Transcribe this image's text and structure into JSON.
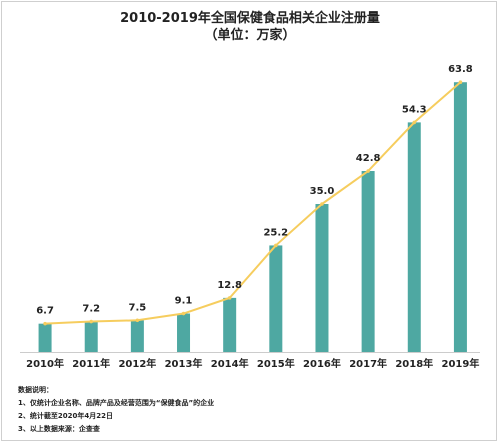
{
  "title": {
    "line1": "2010-2019年全国保健食品相关企业注册量",
    "line2": "（单位：万家）"
  },
  "colors": {
    "bar": "#4ea8a2",
    "line": "#f6cd5e",
    "text": "#222222",
    "axis": "#cccccc"
  },
  "chart_data": {
    "type": "bar",
    "categories": [
      "2010年",
      "2011年",
      "2012年",
      "2013年",
      "2014年",
      "2015年",
      "2016年",
      "2017年",
      "2018年",
      "2019年"
    ],
    "series": [
      {
        "values": [
          6.7,
          7.2,
          7.5,
          9.1,
          12.8,
          25.2,
          35.0,
          42.8,
          54.3,
          63.8
        ]
      }
    ],
    "labels": [
      "6.7",
      "7.2",
      "7.5",
      "9.1",
      "12.8",
      "25.2",
      "35.0",
      "42.8",
      "54.3",
      "63.8"
    ],
    "overlay": "line",
    "title": "2010-2019年全国保健食品相关企业注册量",
    "subtitle": "（单位：万家）",
    "ylim": [
      0,
      70
    ],
    "grid": false,
    "legend": "none"
  },
  "notes": {
    "heading": "数据说明：",
    "items": [
      "1、仅统计企业名称、品牌产品及经营范围为“保健食品”的企业",
      "2、统计截至2020年4月22日",
      "3、以上数据来源：企查查"
    ]
  }
}
